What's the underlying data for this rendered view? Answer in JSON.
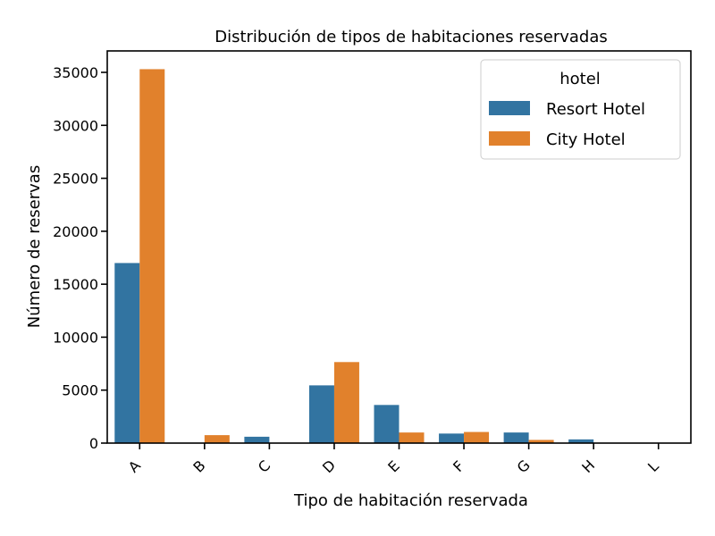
{
  "chart_data": {
    "type": "bar",
    "title": "Distribución de tipos de habitaciones reservadas",
    "xlabel": "Tipo de habitación reservada",
    "ylabel": "Número de reservas",
    "categories": [
      "A",
      "B",
      "C",
      "D",
      "E",
      "F",
      "G",
      "H",
      "L"
    ],
    "series": [
      {
        "name": "Resort Hotel",
        "color": "#3274a1",
        "values": [
          17000,
          0,
          600,
          5450,
          3600,
          900,
          1000,
          350,
          0
        ]
      },
      {
        "name": "City Hotel",
        "color": "#e1812c",
        "values": [
          35300,
          750,
          10,
          7650,
          1000,
          1050,
          300,
          0,
          0
        ]
      }
    ],
    "ylim": [
      0,
      35000
    ],
    "yticks": [
      0,
      5000,
      10000,
      15000,
      20000,
      25000,
      30000,
      35000
    ],
    "legend": {
      "title": "hotel",
      "position": "top-right"
    },
    "grid": false
  }
}
